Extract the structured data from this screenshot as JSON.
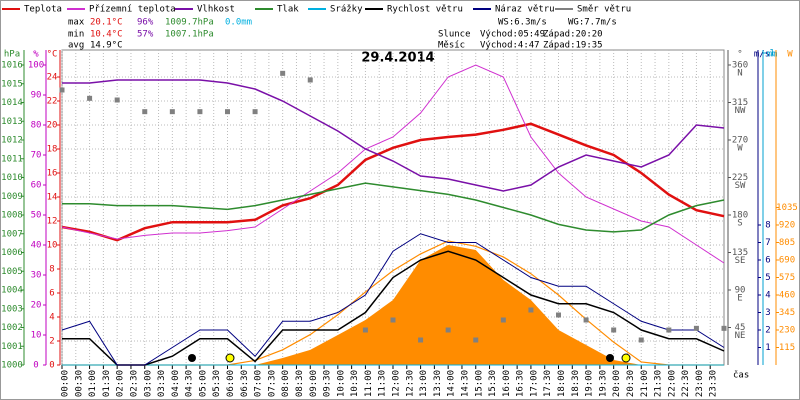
{
  "chart_data": {
    "type": "line",
    "title": "29.4.2014",
    "stats": {
      "max": {
        "label": "max",
        "temp": "20.1°C",
        "hum": "96%",
        "press": "1009.7hPa",
        "rain": "0.0mm"
      },
      "min": {
        "label": "min",
        "temp": "10.4°C",
        "hum": "57%",
        "press": "1007.1hPa"
      },
      "avg": {
        "label": "avg",
        "temp": "14.9°C"
      },
      "ws": "WS:6.3m/s",
      "wg": "WG:7.7m/s",
      "sun": {
        "label": "Slunce",
        "rise": "Východ:05:49",
        "set": "Západ:20:20"
      },
      "moon": {
        "label": "Měsíc",
        "rise": "Východ:4:47",
        "set": "Západ:19:35"
      }
    },
    "x_label": "čas",
    "x": [
      0,
      1,
      2,
      3,
      4,
      5,
      6,
      7,
      8,
      9,
      10,
      11,
      12,
      13,
      14,
      15,
      16,
      17,
      18,
      19,
      20,
      21,
      22,
      23,
      24
    ],
    "xlim": [
      0,
      24
    ],
    "xticks": [
      {
        "value": 0,
        "label": "00:00"
      },
      {
        "value": 0.5,
        "label": "00:30"
      },
      {
        "value": 1,
        "label": "01:00"
      },
      {
        "value": 1.5,
        "label": "01:30"
      },
      {
        "value": 2,
        "label": "02:00"
      },
      {
        "value": 2.5,
        "label": "02:30"
      },
      {
        "value": 3,
        "label": "03:00"
      },
      {
        "value": 3.5,
        "label": "03:30"
      },
      {
        "value": 4,
        "label": "04:00"
      },
      {
        "value": 4.5,
        "label": "04:30"
      },
      {
        "value": 5,
        "label": "05:00"
      },
      {
        "value": 5.5,
        "label": "05:30"
      },
      {
        "value": 6,
        "label": "06:00"
      },
      {
        "value": 6.5,
        "label": "06:30"
      },
      {
        "value": 7,
        "label": "07:00"
      },
      {
        "value": 7.5,
        "label": "07:30"
      },
      {
        "value": 8,
        "label": "08:00"
      },
      {
        "value": 8.5,
        "label": "08:30"
      },
      {
        "value": 9,
        "label": "09:00"
      },
      {
        "value": 9.5,
        "label": "09:30"
      },
      {
        "value": 10,
        "label": "10:00"
      },
      {
        "value": 10.5,
        "label": "10:30"
      },
      {
        "value": 11,
        "label": "11:00"
      },
      {
        "value": 11.5,
        "label": "11:30"
      },
      {
        "value": 12,
        "label": "12:00"
      },
      {
        "value": 12.5,
        "label": "12:30"
      },
      {
        "value": 13,
        "label": "13:00"
      },
      {
        "value": 13.5,
        "label": "13:30"
      },
      {
        "value": 14,
        "label": "14:00"
      },
      {
        "value": 14.5,
        "label": "14:30"
      },
      {
        "value": 15,
        "label": "15:00"
      },
      {
        "value": 15.5,
        "label": "15:30"
      },
      {
        "value": 16,
        "label": "16:00"
      },
      {
        "value": 16.5,
        "label": "16:30"
      },
      {
        "value": 17,
        "label": "17:00"
      },
      {
        "value": 17.5,
        "label": "17:30"
      },
      {
        "value": 18,
        "label": "18:00"
      },
      {
        "value": 18.5,
        "label": "18:30"
      },
      {
        "value": 19,
        "label": "19:00"
      },
      {
        "value": 19.5,
        "label": "19:30"
      },
      {
        "value": 20,
        "label": "20:00"
      },
      {
        "value": 20.5,
        "label": "20:30"
      },
      {
        "value": 21,
        "label": "21:00"
      },
      {
        "value": 21.5,
        "label": "21:30"
      },
      {
        "value": 22,
        "label": "22:00"
      },
      {
        "value": 22.5,
        "label": "22:30"
      },
      {
        "value": 23,
        "label": "23:00"
      },
      {
        "value": 23.5,
        "label": "23:30"
      }
    ],
    "grid": true,
    "axes": {
      "hpa": {
        "label": "hPa",
        "side": "left",
        "color": "#2e8b2e",
        "lim": [
          1000,
          1016.64
        ],
        "ticks": [
          1000,
          1001,
          1002,
          1003,
          1004,
          1005,
          1006,
          1007,
          1008,
          1009,
          1010,
          1011,
          1012,
          1013,
          1014,
          1015,
          1016
        ]
      },
      "pct": {
        "label": "%",
        "side": "left",
        "color": "#c000c0",
        "lim": [
          0,
          104
        ],
        "ticks": [
          0,
          10,
          20,
          30,
          40,
          50,
          60,
          70,
          80,
          90,
          100
        ]
      },
      "degc": {
        "label": "°C",
        "side": "left",
        "color": "#e01010",
        "lim": [
          0,
          26
        ],
        "ticks": [
          0,
          2,
          4,
          6,
          8,
          10,
          12,
          14,
          16,
          18,
          20,
          22,
          24
        ]
      },
      "dir": {
        "label": "°",
        "side": "right",
        "color": "#555555",
        "lim": [
          0,
          374.4
        ],
        "ticks": [
          45,
          90,
          135,
          180,
          225,
          270,
          315,
          360
        ],
        "compass": [
          "NE",
          "E",
          "SE",
          "S",
          "SW",
          "W",
          "NW",
          "N"
        ]
      },
      "ms": {
        "label": "m/s",
        "side": "right",
        "color": "#000080",
        "lim": [
          0,
          17.83
        ],
        "ticks": [
          1,
          2,
          3,
          4,
          5,
          6,
          7,
          8
        ]
      },
      "mm": {
        "label": "mm",
        "side": "right",
        "color": "#00a0d0",
        "lim": [
          0,
          1
        ],
        "ticks": [
          1
        ]
      },
      "w": {
        "label": "W",
        "side": "right",
        "color": "#ff8c00",
        "lim": [
          0,
          2050
        ],
        "ticks": [
          115,
          230,
          345,
          460,
          575,
          690,
          805,
          920,
          1035
        ]
      }
    },
    "series": [
      {
        "name": "Teplota",
        "color": "#e01010",
        "axis": "degc",
        "width": 2.5,
        "values": [
          11.5,
          11.1,
          10.4,
          11.4,
          11.9,
          11.9,
          11.9,
          12.1,
          13.3,
          13.9,
          15,
          17.1,
          18.1,
          18.75,
          19,
          19.2,
          19.6,
          20.1,
          19.2,
          18.3,
          17.5,
          16,
          14.2,
          12.9,
          12.4
        ]
      },
      {
        "name": "Přízemní teplota",
        "color": "#d030d0",
        "axis": "degc",
        "width": 1,
        "values": [
          11.5,
          11,
          10.5,
          10.8,
          11,
          11,
          11.2,
          11.5,
          13,
          14.5,
          16,
          18,
          19,
          21,
          24,
          25,
          24,
          19,
          16,
          14,
          13,
          12,
          11.5,
          10,
          8.5
        ]
      },
      {
        "name": "Vlhkost",
        "color": "#7a10a8",
        "axis": "pct",
        "width": 1.5,
        "values": [
          94,
          94,
          95,
          95,
          95,
          95,
          94,
          92,
          88,
          83,
          78,
          72,
          68,
          63,
          62,
          60,
          58,
          60,
          66,
          70,
          68,
          66,
          70,
          80,
          79
        ]
      },
      {
        "name": "Tlak",
        "color": "#2e8b2e",
        "axis": "hpa",
        "width": 1.5,
        "values": [
          1008.6,
          1008.6,
          1008.5,
          1008.5,
          1008.5,
          1008.4,
          1008.3,
          1008.5,
          1008.8,
          1009.1,
          1009.4,
          1009.7,
          1009.5,
          1009.3,
          1009.1,
          1008.8,
          1008.4,
          1008,
          1007.5,
          1007.2,
          1007.1,
          1007.2,
          1008,
          1008.5,
          1008.8
        ]
      },
      {
        "name": "Srážky",
        "color": "#00b0e0",
        "axis": "mm",
        "width": 1,
        "values": [
          0,
          0,
          0,
          0,
          0,
          0,
          0,
          0,
          0,
          0,
          0,
          0,
          0,
          0,
          0,
          0,
          0,
          0,
          0,
          0,
          0,
          0,
          0,
          0,
          0
        ]
      },
      {
        "name": "Rychlost větru",
        "color": "#000000",
        "axis": "ms",
        "width": 1.5,
        "values": [
          1.5,
          1.5,
          0,
          0,
          0.5,
          1.5,
          1.5,
          0.2,
          2,
          2,
          2,
          3,
          5,
          6,
          6.5,
          6,
          5,
          4,
          3.5,
          3.5,
          3,
          2,
          1.5,
          1.5,
          0.8
        ]
      },
      {
        "name": "Náraz větru",
        "color": "#000080",
        "axis": "ms",
        "width": 1,
        "values": [
          2,
          2.5,
          0,
          0,
          1,
          2,
          2,
          0.5,
          2.5,
          2.5,
          3,
          4,
          6.5,
          7.5,
          7,
          7,
          6,
          5,
          4.5,
          4.5,
          3.5,
          2.5,
          2,
          2,
          1
        ]
      },
      {
        "name": "Směr větru",
        "color": "#808080",
        "axis": "dir",
        "style": "points",
        "values": [
          330,
          320,
          318,
          304,
          304,
          304,
          304,
          304,
          350,
          342,
          null,
          42,
          54,
          30,
          42,
          30,
          54,
          66,
          60,
          54,
          42,
          30,
          42,
          44,
          44
        ]
      },
      {
        "color": "#ff8c00",
        "axis": "w",
        "style": "area",
        "values": [
          0,
          0,
          0,
          0,
          0,
          0,
          0,
          0,
          46,
          99,
          197,
          296,
          427,
          690,
          789,
          756,
          559,
          427,
          230,
          131,
          33,
          0,
          0,
          0,
          0
        ]
      },
      {
        "color": "#ff8c00",
        "axis": "w",
        "width": 1.2,
        "values": [
          0,
          0,
          0,
          0,
          0,
          0,
          0,
          30,
          100,
          200,
          330,
          480,
          620,
          730,
          815,
          780,
          710,
          600,
          460,
          300,
          150,
          20,
          0,
          0,
          0
        ]
      }
    ]
  }
}
